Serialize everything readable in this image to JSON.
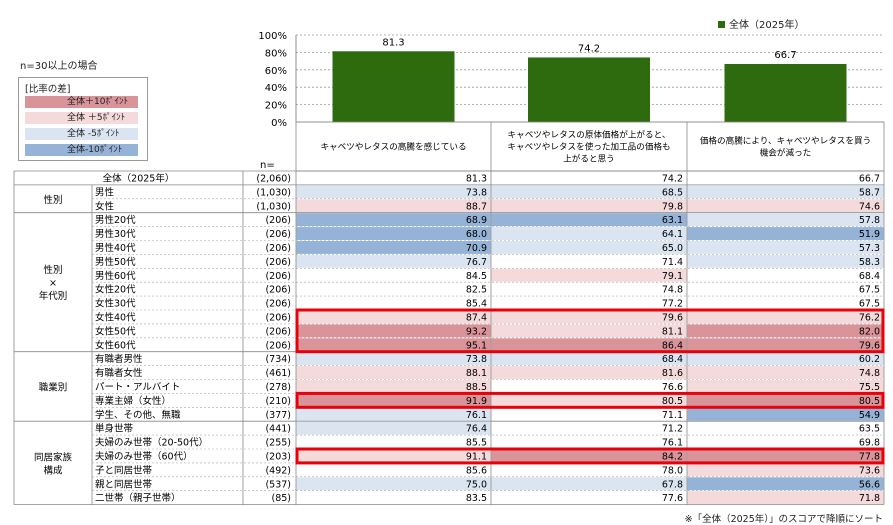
{
  "sample_note": "n=30以上の場合",
  "legend": {
    "title": "[比率の差]",
    "items": [
      {
        "label": "全体＋10ﾎﾟｲﾝﾄ",
        "color": "#d9949a"
      },
      {
        "label": "全体 ＋5ﾎﾟｲﾝﾄ",
        "color": "#f4dadb"
      },
      {
        "label": "全体 -5ﾎﾟｲﾝﾄ",
        "color": "#dbe5f1"
      },
      {
        "label": "全体-10ﾎﾟｲﾝﾄ",
        "color": "#95b3d7"
      }
    ]
  },
  "footnote": "※「全体（2025年）」のスコアで降順にソート",
  "chart_data": {
    "type": "bar",
    "series": [
      {
        "name": "全体（2025年）",
        "values": [
          81.3,
          74.2,
          66.7
        ],
        "color": "#2e6b0e"
      }
    ],
    "categories": [
      "キャベツやレタスの高騰を感じている",
      "キャベツやレタスの原体価格が上がると、キャベツやレタスを使った加工品の価格も上がると思う",
      "価格の高騰により、キャベツやレタスを買う機会が減った"
    ],
    "category_lines": [
      [
        "キャベツやレタスの高騰を感じている"
      ],
      [
        "キャベツやレタスの原体価格が上がると、",
        "キャベツやレタスを使った加工品の価格も",
        "上がると思う"
      ],
      [
        "価格の高騰により、キャベツやレタスを買う",
        "機会が減った"
      ]
    ],
    "y_ticks": [
      "0%",
      "20%",
      "40%",
      "60%",
      "80%",
      "100%"
    ],
    "ylim": [
      0,
      100
    ],
    "n_label": "n="
  },
  "table": {
    "total": {
      "label": "全体（2025年）",
      "n": "(2,060)",
      "values": [
        "81.3",
        "74.2",
        "66.7"
      ]
    },
    "groups": [
      {
        "name": [
          "性別"
        ],
        "rows": [
          {
            "label": "男性",
            "n": "(1,030)",
            "values": [
              "73.8",
              "68.5",
              "58.7"
            ],
            "shade": [
              -1,
              -1,
              -1
            ]
          },
          {
            "label": "女性",
            "n": "(1,030)",
            "values": [
              "88.7",
              "79.8",
              "74.6"
            ],
            "shade": [
              1,
              1,
              1
            ]
          }
        ]
      },
      {
        "name": [
          "性別",
          "×",
          "年代別"
        ],
        "rows": [
          {
            "label": "男性20代",
            "n": "(206)",
            "values": [
              "68.9",
              "63.1",
              "57.8"
            ],
            "shade": [
              -2,
              -2,
              -1
            ]
          },
          {
            "label": "男性30代",
            "n": "(206)",
            "values": [
              "68.0",
              "64.1",
              "51.9"
            ],
            "shade": [
              -2,
              -1,
              -2
            ]
          },
          {
            "label": "男性40代",
            "n": "(206)",
            "values": [
              "70.9",
              "65.0",
              "57.3"
            ],
            "shade": [
              -2,
              -1,
              -1
            ]
          },
          {
            "label": "男性50代",
            "n": "(206)",
            "values": [
              "76.7",
              "71.4",
              "58.3"
            ],
            "shade": [
              -1,
              0,
              -1
            ]
          },
          {
            "label": "男性60代",
            "n": "(206)",
            "values": [
              "84.5",
              "79.1",
              "68.4"
            ],
            "shade": [
              0,
              1,
              0
            ]
          },
          {
            "label": "女性20代",
            "n": "(206)",
            "values": [
              "82.5",
              "74.8",
              "67.5"
            ],
            "shade": [
              0,
              0,
              0
            ]
          },
          {
            "label": "女性30代",
            "n": "(206)",
            "values": [
              "85.4",
              "77.2",
              "67.5"
            ],
            "shade": [
              0,
              0,
              0
            ]
          },
          {
            "label": "女性40代",
            "n": "(206)",
            "values": [
              "87.4",
              "79.6",
              "76.2"
            ],
            "shade": [
              1,
              1,
              1
            ]
          },
          {
            "label": "女性50代",
            "n": "(206)",
            "values": [
              "93.2",
              "81.1",
              "82.0"
            ],
            "shade": [
              2,
              1,
              2
            ]
          },
          {
            "label": "女性60代",
            "n": "(206)",
            "values": [
              "95.1",
              "86.4",
              "79.6"
            ],
            "shade": [
              2,
              2,
              2
            ]
          }
        ]
      },
      {
        "name": [
          "職業別"
        ],
        "rows": [
          {
            "label": "有職者男性",
            "n": "(734)",
            "values": [
              "73.8",
              "68.4",
              "60.2"
            ],
            "shade": [
              -1,
              -1,
              -1
            ]
          },
          {
            "label": "有職者女性",
            "n": "(461)",
            "values": [
              "88.1",
              "81.6",
              "74.8"
            ],
            "shade": [
              1,
              1,
              1
            ]
          },
          {
            "label": "パート・アルバイト",
            "n": "(278)",
            "values": [
              "88.5",
              "76.6",
              "75.5"
            ],
            "shade": [
              1,
              0,
              1
            ]
          },
          {
            "label": "専業主婦（女性）",
            "n": "(210)",
            "values": [
              "91.9",
              "80.5",
              "80.5"
            ],
            "shade": [
              2,
              1,
              2
            ]
          },
          {
            "label": "学生、その他、無職",
            "n": "(377)",
            "values": [
              "76.1",
              "71.1",
              "54.9"
            ],
            "shade": [
              -1,
              0,
              -2
            ]
          }
        ]
      },
      {
        "name": [
          "同居家族",
          "構成"
        ],
        "rows": [
          {
            "label": "単身世帯",
            "n": "(441)",
            "values": [
              "76.4",
              "71.2",
              "63.5"
            ],
            "shade": [
              -1,
              0,
              0
            ]
          },
          {
            "label": "夫婦のみ世帯（20-50代）",
            "n": "(255)",
            "values": [
              "85.5",
              "76.1",
              "69.8"
            ],
            "shade": [
              0,
              0,
              0
            ]
          },
          {
            "label": "夫婦のみ世帯（60代）",
            "n": "(203)",
            "values": [
              "91.1",
              "84.2",
              "77.8"
            ],
            "shade": [
              1,
              2,
              2
            ]
          },
          {
            "label": "子と同居世帯",
            "n": "(492)",
            "values": [
              "85.6",
              "78.0",
              "73.6"
            ],
            "shade": [
              0,
              0,
              1
            ]
          },
          {
            "label": "親と同居世帯",
            "n": "(537)",
            "values": [
              "75.0",
              "67.8",
              "56.6"
            ],
            "shade": [
              -1,
              -1,
              -2
            ]
          },
          {
            "label": "二世帯（親子世帯）",
            "n": "(85)",
            "values": [
              "83.5",
              "77.6",
              "71.8"
            ],
            "shade": [
              0,
              0,
              1
            ]
          }
        ]
      }
    ]
  },
  "highlights": [
    "女性40代",
    "女性50代",
    "女性60代",
    "専業主婦（女性）",
    "夫婦のみ世帯（60代）"
  ]
}
